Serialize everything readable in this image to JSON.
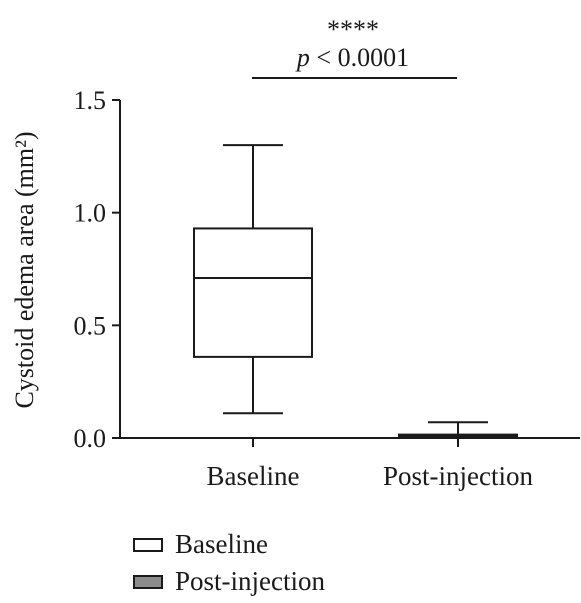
{
  "chart_data": {
    "type": "box",
    "title": "",
    "xlabel": "",
    "ylabel": "Cystoid edema area (mm²)",
    "ylim": [
      0,
      1.5
    ],
    "yticks": [
      "0.0",
      "0.5",
      "1.0",
      "1.5"
    ],
    "categories": [
      "Baseline",
      "Post-injection"
    ],
    "series": [
      {
        "name": "Baseline",
        "fill": "#ffffff",
        "min": 0.11,
        "q1": 0.36,
        "median": 0.71,
        "q3": 0.93,
        "max": 1.3
      },
      {
        "name": "Post-injection",
        "fill": "#8c8c8c",
        "min": 0.0,
        "q1": 0.003,
        "median": 0.008,
        "q3": 0.015,
        "max": 0.07
      }
    ],
    "significance": {
      "stars": "****",
      "p_prefix": "p",
      "p_rest": " < 0.0001"
    },
    "grid": false,
    "legend_position": "bottom-left"
  }
}
